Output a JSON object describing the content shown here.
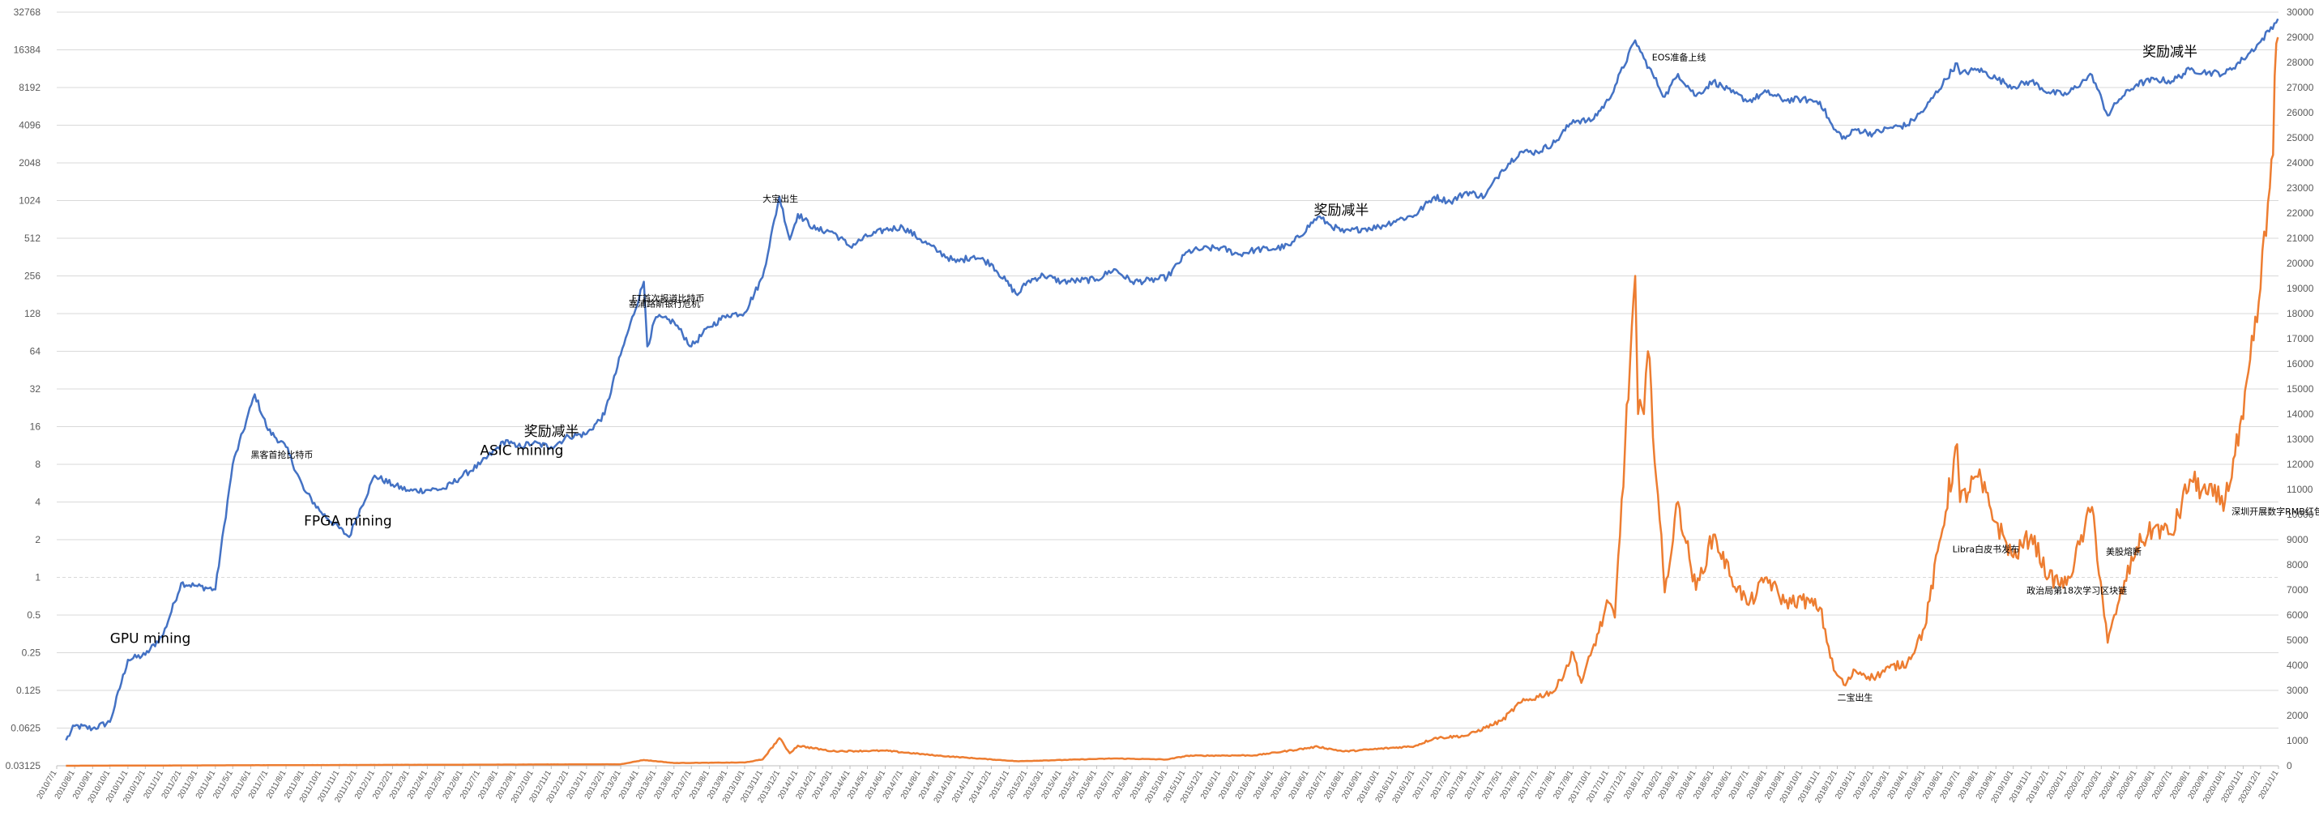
{
  "chart_data": {
    "type": "line",
    "title": "",
    "xlabel": "",
    "ylabel": "",
    "y_left_scale": "log2",
    "y_left_ticks": [
      "0.03125",
      "0.0625",
      "0.125",
      "0.25",
      "0.5",
      "1",
      "2",
      "4",
      "8",
      "16",
      "32",
      "64",
      "128",
      "256",
      "512",
      "1024",
      "2048",
      "4096",
      "8192",
      "16384",
      "32768"
    ],
    "y_left_range": [
      0.03125,
      32768
    ],
    "y_right_ticks": [
      "0",
      "1000",
      "2000",
      "3000",
      "4000",
      "5000",
      "6000",
      "7000",
      "8000",
      "9000",
      "10000",
      "11000",
      "12000",
      "13000",
      "14000",
      "15000",
      "16000",
      "17000",
      "18000",
      "19000",
      "20000",
      "21000",
      "22000",
      "23000",
      "24000",
      "25000",
      "26000",
      "27000",
      "28000",
      "29000",
      "30000"
    ],
    "y_right_range": [
      0,
      30000
    ],
    "x_range": [
      "2010/7/1",
      "2021/1/1"
    ],
    "x_tick_interval_months": 1,
    "grid": true,
    "legend": "none",
    "series": [
      {
        "axis": "left-log",
        "color": "#4472C4",
        "values": [
          [
            "2010/7/17",
            0.05
          ],
          [
            "2010/8/1",
            0.065
          ],
          [
            "2010/9/1",
            0.062
          ],
          [
            "2010/10/1",
            0.07
          ],
          [
            "2010/11/1",
            0.22
          ],
          [
            "2010/12/1",
            0.24
          ],
          [
            "2011/1/1",
            0.35
          ],
          [
            "2011/2/1",
            0.9
          ],
          [
            "2011/3/1",
            0.85
          ],
          [
            "2011/4/1",
            0.8
          ],
          [
            "2011/5/1",
            8
          ],
          [
            "2011/6/8",
            29
          ],
          [
            "2011/7/1",
            15
          ],
          [
            "2011/8/1",
            11
          ],
          [
            "2011/9/1",
            5
          ],
          [
            "2011/10/1",
            3.3
          ],
          [
            "2011/11/18",
            2.1
          ],
          [
            "2011/12/1",
            3.0
          ],
          [
            "2012/1/1",
            6.5
          ],
          [
            "2012/2/1",
            5.5
          ],
          [
            "2012/3/1",
            4.9
          ],
          [
            "2012/4/1",
            5.0
          ],
          [
            "2012/5/1",
            5.1
          ],
          [
            "2012/6/1",
            6.5
          ],
          [
            "2012/7/1",
            8.0
          ],
          [
            "2012/8/15",
            12.5
          ],
          [
            "2012/9/1",
            11
          ],
          [
            "2012/10/1",
            11.8
          ],
          [
            "2012/11/1",
            11
          ],
          [
            "2012/12/1",
            13.4
          ],
          [
            "2013/1/1",
            14
          ],
          [
            "2013/2/1",
            20
          ],
          [
            "2013/3/1",
            60
          ],
          [
            "2013/4/10",
            230
          ],
          [
            "2013/4/16",
            70
          ],
          [
            "2013/5/1",
            120
          ],
          [
            "2013/6/1",
            110
          ],
          [
            "2013/7/1",
            70
          ],
          [
            "2013/8/1",
            100
          ],
          [
            "2013/9/1",
            125
          ],
          [
            "2013/10/1",
            130
          ],
          [
            "2013/11/1",
            250
          ],
          [
            "2013/11/30",
            1100
          ],
          [
            "2013/12/18",
            500
          ],
          [
            "2014/1/1",
            800
          ],
          [
            "2014/2/1",
            600
          ],
          [
            "2014/3/1",
            580
          ],
          [
            "2014/4/1",
            440
          ],
          [
            "2014/5/1",
            530
          ],
          [
            "2014/6/1",
            600
          ],
          [
            "2014/7/1",
            630
          ],
          [
            "2014/8/1",
            500
          ],
          [
            "2014/9/1",
            400
          ],
          [
            "2014/10/1",
            330
          ],
          [
            "2014/11/1",
            370
          ],
          [
            "2014/12/1",
            320
          ],
          [
            "2015/1/15",
            180
          ],
          [
            "2015/2/1",
            230
          ],
          [
            "2015/3/1",
            260
          ],
          [
            "2015/4/1",
            230
          ],
          [
            "2015/5/1",
            235
          ],
          [
            "2015/6/1",
            240
          ],
          [
            "2015/7/1",
            290
          ],
          [
            "2015/8/1",
            230
          ],
          [
            "2015/9/1",
            235
          ],
          [
            "2015/10/1",
            250
          ],
          [
            "2015/11/5",
            400
          ],
          [
            "2015/12/1",
            420
          ],
          [
            "2016/1/1",
            430
          ],
          [
            "2016/2/1",
            380
          ],
          [
            "2016/3/1",
            415
          ],
          [
            "2016/4/1",
            420
          ],
          [
            "2016/5/1",
            450
          ],
          [
            "2016/6/17",
            760
          ],
          [
            "2016/7/9",
            650
          ],
          [
            "2016/8/1",
            570
          ],
          [
            "2016/9/1",
            610
          ],
          [
            "2016/10/1",
            630
          ],
          [
            "2016/11/1",
            720
          ],
          [
            "2016/12/1",
            780
          ],
          [
            "2017/1/4",
            1100
          ],
          [
            "2017/2/1",
            1000
          ],
          [
            "2017/3/1",
            1200
          ],
          [
            "2017/4/1",
            1100
          ],
          [
            "2017/5/1",
            1800
          ],
          [
            "2017/6/1",
            2500
          ],
          [
            "2017/7/1",
            2500
          ],
          [
            "2017/8/1",
            3000
          ],
          [
            "2017/9/1",
            4500
          ],
          [
            "2017/10/1",
            4400
          ],
          [
            "2017/11/1",
            6500
          ],
          [
            "2017/12/17",
            19500
          ],
          [
            "2018/1/1",
            14000
          ],
          [
            "2018/2/6",
            6900
          ],
          [
            "2018/3/1",
            10500
          ],
          [
            "2018/4/1",
            7000
          ],
          [
            "2018/5/1",
            9200
          ],
          [
            "2018/6/1",
            7500
          ],
          [
            "2018/7/1",
            6400
          ],
          [
            "2018/8/1",
            7500
          ],
          [
            "2018/9/1",
            6500
          ],
          [
            "2018/10/1",
            6600
          ],
          [
            "2018/11/1",
            6300
          ],
          [
            "2018/11/25",
            3800
          ],
          [
            "2018/12/15",
            3200
          ],
          [
            "2019/1/1",
            3800
          ],
          [
            "2019/2/1",
            3500
          ],
          [
            "2019/3/1",
            3900
          ],
          [
            "2019/4/1",
            4100
          ],
          [
            "2019/5/1",
            5500
          ],
          [
            "2019/6/26",
            12800
          ],
          [
            "2019/7/1",
            10500
          ],
          [
            "2019/8/1",
            11500
          ],
          [
            "2019/9/1",
            9700
          ],
          [
            "2019/10/1",
            8300
          ],
          [
            "2019/11/1",
            9200
          ],
          [
            "2019/12/1",
            7500
          ],
          [
            "2020/1/1",
            7200
          ],
          [
            "2020/2/1",
            9400
          ],
          [
            "2020/2/14",
            10300
          ],
          [
            "2020/3/12",
            4900
          ],
          [
            "2020/4/1",
            6600
          ],
          [
            "2020/5/1",
            8700
          ],
          [
            "2020/6/1",
            9500
          ],
          [
            "2020/7/1",
            9200
          ],
          [
            "2020/8/1",
            11400
          ],
          [
            "2020/9/1",
            10800
          ],
          [
            "2020/10/1",
            10600
          ],
          [
            "2020/11/1",
            13800
          ],
          [
            "2020/12/1",
            19000
          ],
          [
            "2020/12/31",
            29000
          ]
        ]
      },
      {
        "axis": "right-linear",
        "color": "#ED7D31",
        "values": [
          [
            "2010/7/17",
            0.05
          ],
          [
            "2013/3/1",
            60
          ],
          [
            "2013/4/10",
            230
          ],
          [
            "2013/6/1",
            110
          ],
          [
            "2013/10/1",
            130
          ],
          [
            "2013/11/1",
            250
          ],
          [
            "2013/11/30",
            1100
          ],
          [
            "2013/12/18",
            500
          ],
          [
            "2014/1/1",
            800
          ],
          [
            "2014/3/1",
            580
          ],
          [
            "2014/6/1",
            600
          ],
          [
            "2014/9/1",
            400
          ],
          [
            "2015/1/15",
            180
          ],
          [
            "2015/7/1",
            290
          ],
          [
            "2015/10/1",
            250
          ],
          [
            "2015/11/5",
            400
          ],
          [
            "2016/3/1",
            415
          ],
          [
            "2016/6/17",
            760
          ],
          [
            "2016/8/1",
            570
          ],
          [
            "2016/12/1",
            780
          ],
          [
            "2017/1/4",
            1100
          ],
          [
            "2017/3/1",
            1200
          ],
          [
            "2017/5/1",
            1800
          ],
          [
            "2017/6/1",
            2500
          ],
          [
            "2017/8/1",
            3000
          ],
          [
            "2017/9/1",
            4500
          ],
          [
            "2017/9/15",
            3300
          ],
          [
            "2017/10/1",
            4400
          ],
          [
            "2017/11/1",
            6500
          ],
          [
            "2017/11/12",
            5900
          ],
          [
            "2017/12/17",
            19500
          ],
          [
            "2017/12/22",
            14000
          ],
          [
            "2018/1/1",
            14000
          ],
          [
            "2018/1/8",
            16500
          ],
          [
            "2018/2/6",
            6900
          ],
          [
            "2018/3/1",
            10500
          ],
          [
            "2018/4/1",
            7000
          ],
          [
            "2018/5/1",
            9200
          ],
          [
            "2018/6/1",
            7500
          ],
          [
            "2018/7/1",
            6400
          ],
          [
            "2018/8/1",
            7500
          ],
          [
            "2018/9/1",
            6500
          ],
          [
            "2018/10/1",
            6600
          ],
          [
            "2018/11/1",
            6300
          ],
          [
            "2018/11/25",
            3800
          ],
          [
            "2018/12/15",
            3200
          ],
          [
            "2019/1/1",
            3800
          ],
          [
            "2019/2/1",
            3500
          ],
          [
            "2019/3/1",
            3900
          ],
          [
            "2019/4/1",
            4100
          ],
          [
            "2019/5/1",
            5500
          ],
          [
            "2019/6/26",
            12800
          ],
          [
            "2019/7/1",
            10500
          ],
          [
            "2019/8/1",
            11500
          ],
          [
            "2019/9/1",
            9700
          ],
          [
            "2019/10/1",
            8300
          ],
          [
            "2019/11/1",
            9200
          ],
          [
            "2019/12/1",
            7500
          ],
          [
            "2020/1/1",
            7200
          ],
          [
            "2020/2/1",
            9400
          ],
          [
            "2020/2/14",
            10300
          ],
          [
            "2020/3/12",
            4900
          ],
          [
            "2020/4/1",
            6600
          ],
          [
            "2020/5/1",
            8700
          ],
          [
            "2020/6/1",
            9500
          ],
          [
            "2020/7/1",
            9200
          ],
          [
            "2020/8/1",
            11400
          ],
          [
            "2020/9/1",
            10800
          ],
          [
            "2020/10/1",
            10600
          ],
          [
            "2020/11/1",
            13800
          ],
          [
            "2020/12/1",
            19000
          ],
          [
            "2020/12/17",
            23000
          ],
          [
            "2020/12/31",
            29000
          ]
        ]
      }
    ],
    "annotations": [
      {
        "text": "GPU mining",
        "date": "2010/10/1",
        "value": 0.3,
        "size": "large"
      },
      {
        "text": "黑客首抢比特币",
        "date": "2011/6/1",
        "value": 9,
        "size": "small"
      },
      {
        "text": "FPGA mining",
        "date": "2011/9/1",
        "value": 2.6,
        "size": "large"
      },
      {
        "text": "ASIC mining",
        "date": "2012/7/1",
        "value": 9.5,
        "size": "large"
      },
      {
        "text": "奖励减半",
        "date": "2012/9/15",
        "value": 13.5,
        "size": "large"
      },
      {
        "text": "FT首次报道比特币",
        "date": "2013/3/20",
        "value": 160,
        "size": "small"
      },
      {
        "text": "塞浦路斯银行危机",
        "date": "2013/3/15",
        "value": 145,
        "size": "small"
      },
      {
        "text": "大宝出生",
        "date": "2013/11/1",
        "value": 1000,
        "size": "small"
      },
      {
        "text": "奖励减半",
        "date": "2016/6/10",
        "value": 790,
        "size": "large"
      },
      {
        "text": "EOS准备上线",
        "date": "2018/1/15",
        "value": 13500,
        "size": "small"
      },
      {
        "text": "奖励减半",
        "date": "2020/5/11",
        "value": 14500,
        "size": "large"
      },
      {
        "text": "二宝出生",
        "date": "2018/12/1",
        "value": 2600,
        "size": "small",
        "axis": "right"
      },
      {
        "text": "Libra白皮书发布",
        "date": "2019/6/18",
        "value": 8500,
        "size": "small",
        "axis": "right"
      },
      {
        "text": "政治局第18次学习区块链",
        "date": "2019/10/24",
        "value": 6850,
        "size": "small",
        "axis": "right"
      },
      {
        "text": "美股熔断",
        "date": "2020/3/9",
        "value": 8400,
        "size": "small",
        "axis": "right"
      },
      {
        "text": "深圳开展数字RMB红包试点",
        "date": "2020/10/12",
        "value": 10000,
        "size": "small",
        "axis": "right"
      }
    ]
  }
}
